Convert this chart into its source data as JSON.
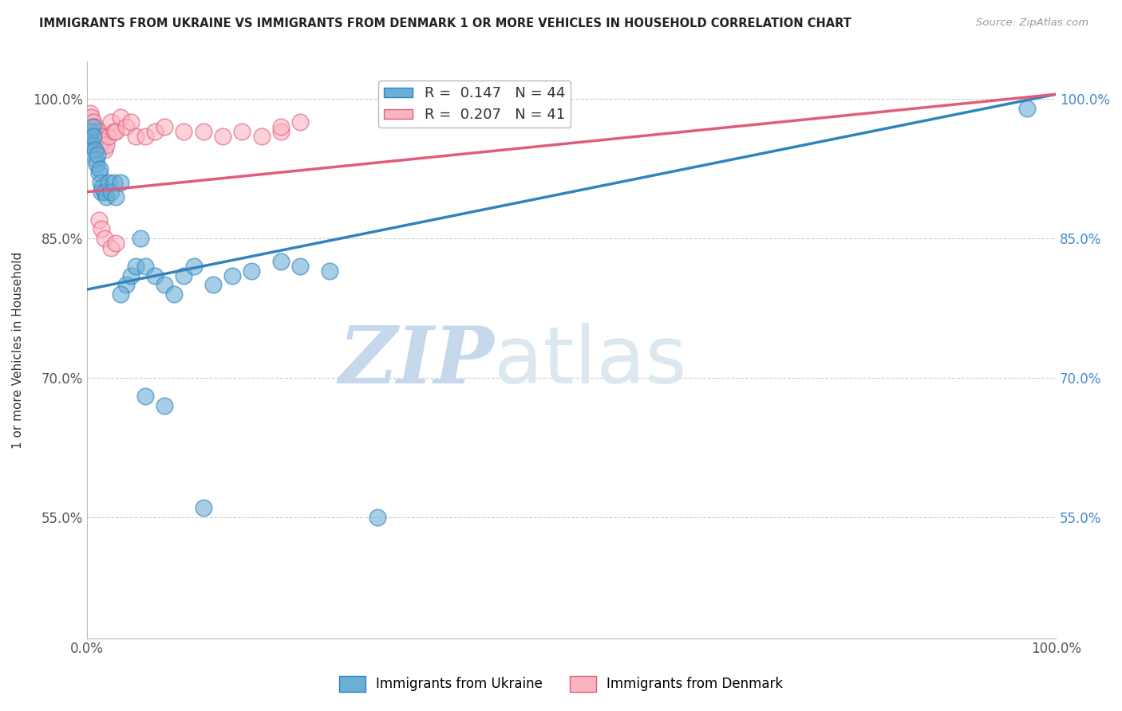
{
  "title": "IMMIGRANTS FROM UKRAINE VS IMMIGRANTS FROM DENMARK 1 OR MORE VEHICLES IN HOUSEHOLD CORRELATION CHART",
  "source": "Source: ZipAtlas.com",
  "ylabel": "1 or more Vehicles in Household",
  "xlim": [
    0.0,
    1.0
  ],
  "ylim": [
    0.42,
    1.04
  ],
  "yticks": [
    0.55,
    0.7,
    0.85,
    1.0
  ],
  "ytick_labels": [
    "55.0%",
    "70.0%",
    "85.0%",
    "100.0%"
  ],
  "xtick_labels": [
    "0.0%",
    "100.0%"
  ],
  "xticks": [
    0.0,
    1.0
  ],
  "ukraine_color": "#6baed6",
  "denmark_color": "#fbb4c1",
  "ukraine_line_color": "#3182bd",
  "denmark_line_color": "#e05c7a",
  "R_ukraine": 0.147,
  "N_ukraine": 44,
  "R_denmark": 0.207,
  "N_denmark": 41,
  "legend_label_ukraine": "Immigrants from Ukraine",
  "legend_label_denmark": "Immigrants from Denmark",
  "ukraine_x": [
    0.002,
    0.003,
    0.004,
    0.005,
    0.006,
    0.007,
    0.008,
    0.009,
    0.01,
    0.011,
    0.012,
    0.013,
    0.014,
    0.015,
    0.016,
    0.018,
    0.02,
    0.022,
    0.025,
    0.028,
    0.03,
    0.035,
    0.04,
    0.045,
    0.05,
    0.055,
    0.06,
    0.07,
    0.08,
    0.09,
    0.1,
    0.11,
    0.13,
    0.15,
    0.17,
    0.2,
    0.22,
    0.25,
    0.3,
    0.035,
    0.06,
    0.08,
    0.12,
    0.97
  ],
  "ukraine_y": [
    0.96,
    0.955,
    0.965,
    0.95,
    0.97,
    0.96,
    0.945,
    0.935,
    0.93,
    0.94,
    0.92,
    0.925,
    0.91,
    0.9,
    0.905,
    0.9,
    0.895,
    0.91,
    0.9,
    0.91,
    0.895,
    0.91,
    0.8,
    0.81,
    0.82,
    0.85,
    0.82,
    0.81,
    0.8,
    0.79,
    0.81,
    0.82,
    0.8,
    0.81,
    0.815,
    0.825,
    0.82,
    0.815,
    0.55,
    0.79,
    0.68,
    0.67,
    0.56,
    0.99
  ],
  "denmark_x": [
    0.002,
    0.003,
    0.004,
    0.005,
    0.006,
    0.007,
    0.008,
    0.009,
    0.01,
    0.011,
    0.012,
    0.013,
    0.014,
    0.015,
    0.016,
    0.018,
    0.02,
    0.022,
    0.025,
    0.028,
    0.03,
    0.035,
    0.04,
    0.045,
    0.05,
    0.06,
    0.07,
    0.08,
    0.1,
    0.12,
    0.14,
    0.16,
    0.18,
    0.2,
    0.22,
    0.012,
    0.015,
    0.018,
    0.025,
    0.03,
    0.2
  ],
  "denmark_y": [
    0.975,
    0.985,
    0.98,
    0.97,
    0.96,
    0.975,
    0.97,
    0.965,
    0.955,
    0.95,
    0.96,
    0.965,
    0.95,
    0.96,
    0.955,
    0.945,
    0.95,
    0.96,
    0.975,
    0.965,
    0.965,
    0.98,
    0.97,
    0.975,
    0.96,
    0.96,
    0.965,
    0.97,
    0.965,
    0.965,
    0.96,
    0.965,
    0.96,
    0.965,
    0.975,
    0.87,
    0.86,
    0.85,
    0.84,
    0.845,
    0.97
  ],
  "ukraine_line_x0": 0.0,
  "ukraine_line_y0": 0.795,
  "ukraine_line_x1": 1.0,
  "ukraine_line_y1": 1.005,
  "denmark_line_x0": 0.0,
  "denmark_line_y0": 0.9,
  "denmark_line_x1": 1.0,
  "denmark_line_y1": 1.005,
  "watermark_zip": "ZIP",
  "watermark_atlas": "atlas",
  "watermark_color": "#c5d8ec",
  "bg_color": "#ffffff",
  "grid_color": "#cccccc"
}
